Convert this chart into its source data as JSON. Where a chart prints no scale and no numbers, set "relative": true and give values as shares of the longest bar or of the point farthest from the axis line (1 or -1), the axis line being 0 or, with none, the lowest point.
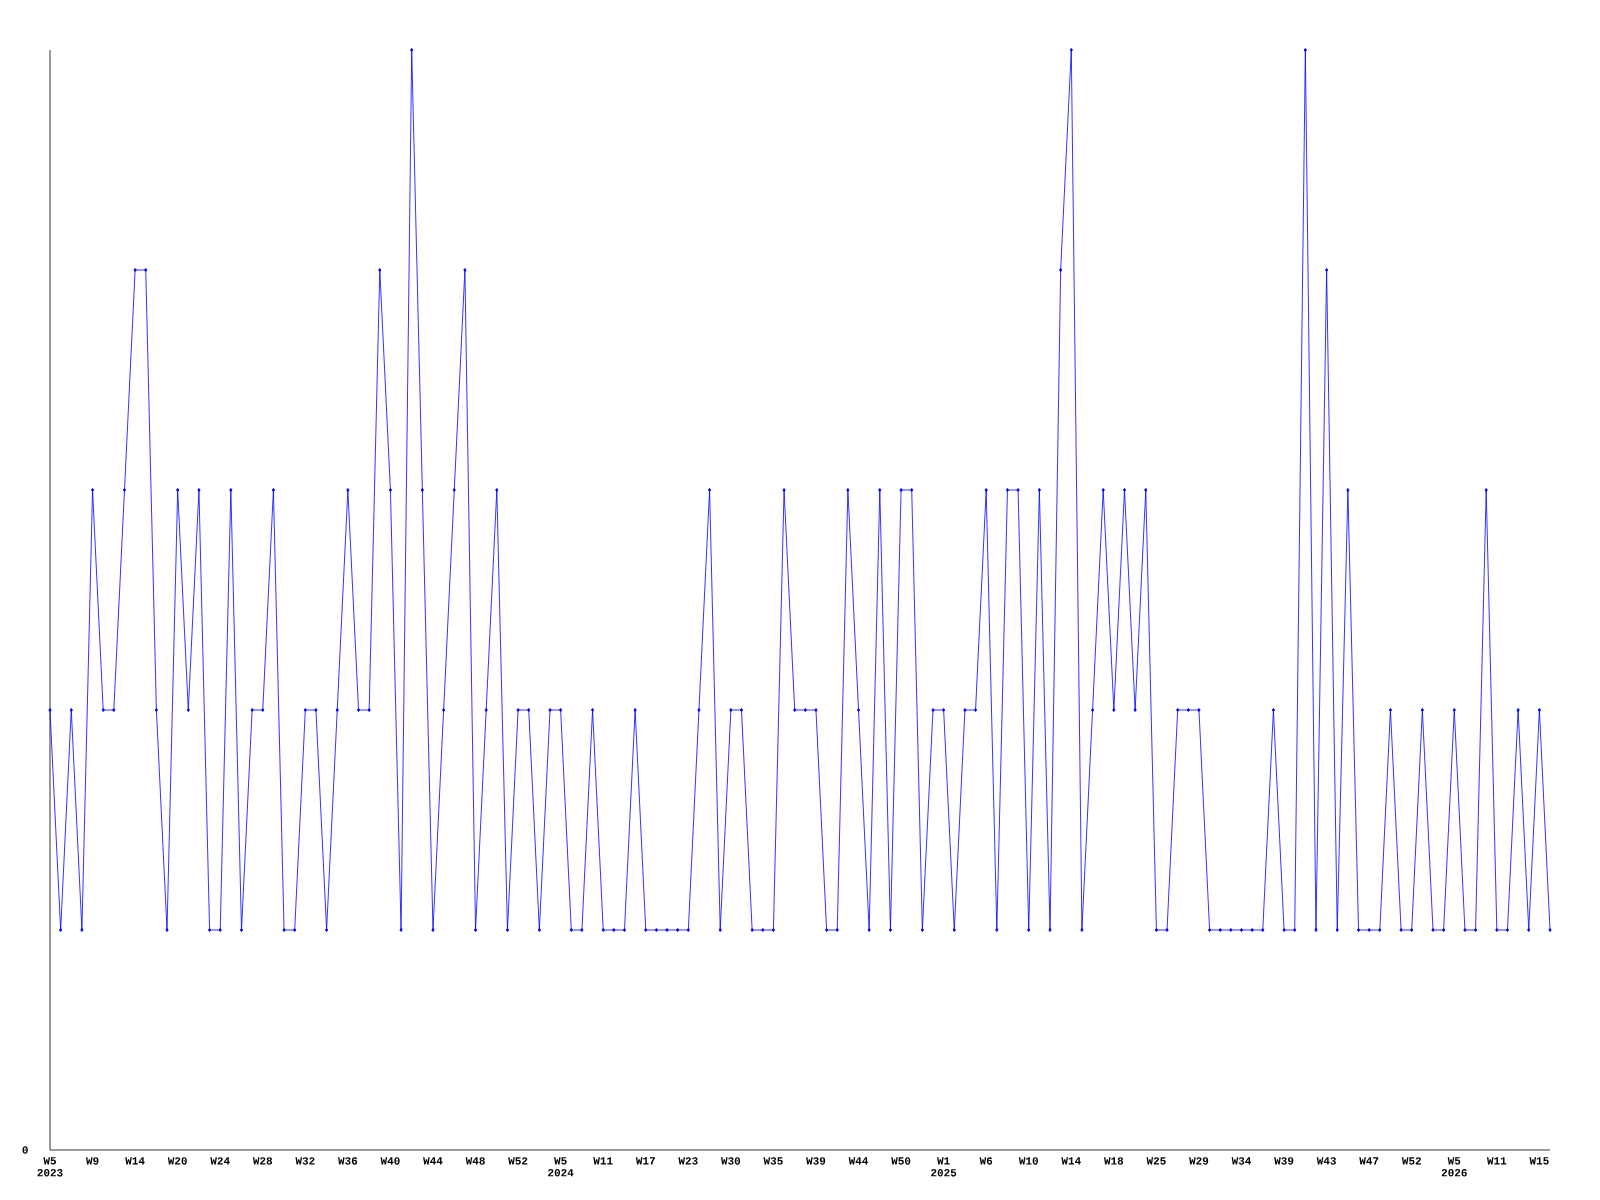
{
  "chart_data": {
    "type": "line",
    "relative": true,
    "color": "#0000ff",
    "marker": "diamond",
    "line_style": "solid",
    "categories": [
      "W5 2023",
      null,
      null,
      null,
      "W9",
      null,
      null,
      null,
      "W14",
      null,
      null,
      null,
      "W20",
      null,
      null,
      null,
      "W24",
      null,
      null,
      null,
      "W28",
      null,
      null,
      null,
      "W32",
      null,
      null,
      null,
      "W36",
      null,
      null,
      null,
      "W40",
      null,
      null,
      null,
      "W44",
      null,
      null,
      null,
      "W48",
      null,
      null,
      null,
      "W52",
      null,
      null,
      null,
      "W5 2024",
      null,
      null,
      null,
      "W11",
      null,
      null,
      null,
      "W17",
      null,
      null,
      null,
      "W23",
      null,
      null,
      null,
      "W30",
      null,
      null,
      null,
      "W35",
      null,
      null,
      null,
      "W39",
      null,
      null,
      null,
      "W44",
      null,
      null,
      null,
      "W50",
      null,
      null,
      null,
      "W1 2025",
      null,
      null,
      null,
      "W6",
      null,
      null,
      null,
      "W10",
      null,
      null,
      null,
      "W14",
      null,
      null,
      null,
      "W18",
      null,
      null,
      null,
      "W25",
      null,
      null,
      null,
      "W29",
      null,
      null,
      null,
      "W34",
      null,
      null,
      null,
      "W39",
      null,
      null,
      null,
      "W43",
      null,
      null,
      null,
      "W47",
      null,
      null,
      null,
      "W52",
      null,
      null,
      null,
      "W5 2026",
      null,
      null,
      null,
      "W11",
      null,
      null,
      null,
      "W15",
      null
    ],
    "values": [
      0.4,
      0.2,
      0.4,
      0.2,
      0.6,
      0.4,
      0.4,
      0.6,
      0.8,
      0.8,
      0.4,
      0.2,
      0.6,
      0.4,
      0.6,
      0.2,
      0.2,
      0.6,
      0.2,
      0.4,
      0.4,
      0.6,
      0.2,
      0.2,
      0.4,
      0.4,
      0.2,
      0.4,
      0.6,
      0.4,
      0.4,
      0.8,
      0.6,
      0.2,
      1,
      0.6,
      0.2,
      0.4,
      0.6,
      0.8,
      0.2,
      0.4,
      0.6,
      0.2,
      0.4,
      0.4,
      0.2,
      0.4,
      0.4,
      0.2,
      0.2,
      0.4,
      0.2,
      0.2,
      0.2,
      0.4,
      0.2,
      0.2,
      0.2,
      0.2,
      0.2,
      0.4,
      0.6,
      0.2,
      0.4,
      0.4,
      0.2,
      0.2,
      0.2,
      0.6,
      0.4,
      0.4,
      0.4,
      0.2,
      0.2,
      0.6,
      0.4,
      0.2,
      0.6,
      0.2,
      0.6,
      0.6,
      0.2,
      0.4,
      0.4,
      0.2,
      0.4,
      0.4,
      0.6,
      0.2,
      0.6,
      0.6,
      0.2,
      0.6,
      0.2,
      0.8,
      1,
      0.2,
      0.4,
      0.6,
      0.4,
      0.6,
      0.4,
      0.6,
      0.2,
      0.2,
      0.4,
      0.4,
      0.4,
      0.2,
      0.2,
      0.2,
      0.2,
      0.2,
      0.2,
      0.4,
      0.2,
      0.2,
      1,
      0.2,
      0.8,
      0.2,
      0.6,
      0.2,
      0.2,
      0.2,
      0.4,
      0.2,
      0.2,
      0.4,
      0.2,
      0.2,
      0.4,
      0.2,
      0.2,
      0.6,
      0.2,
      0.2,
      0.4,
      0.2,
      0.4,
      0.2
    ],
    "annotations": [
      "0"
    ]
  }
}
